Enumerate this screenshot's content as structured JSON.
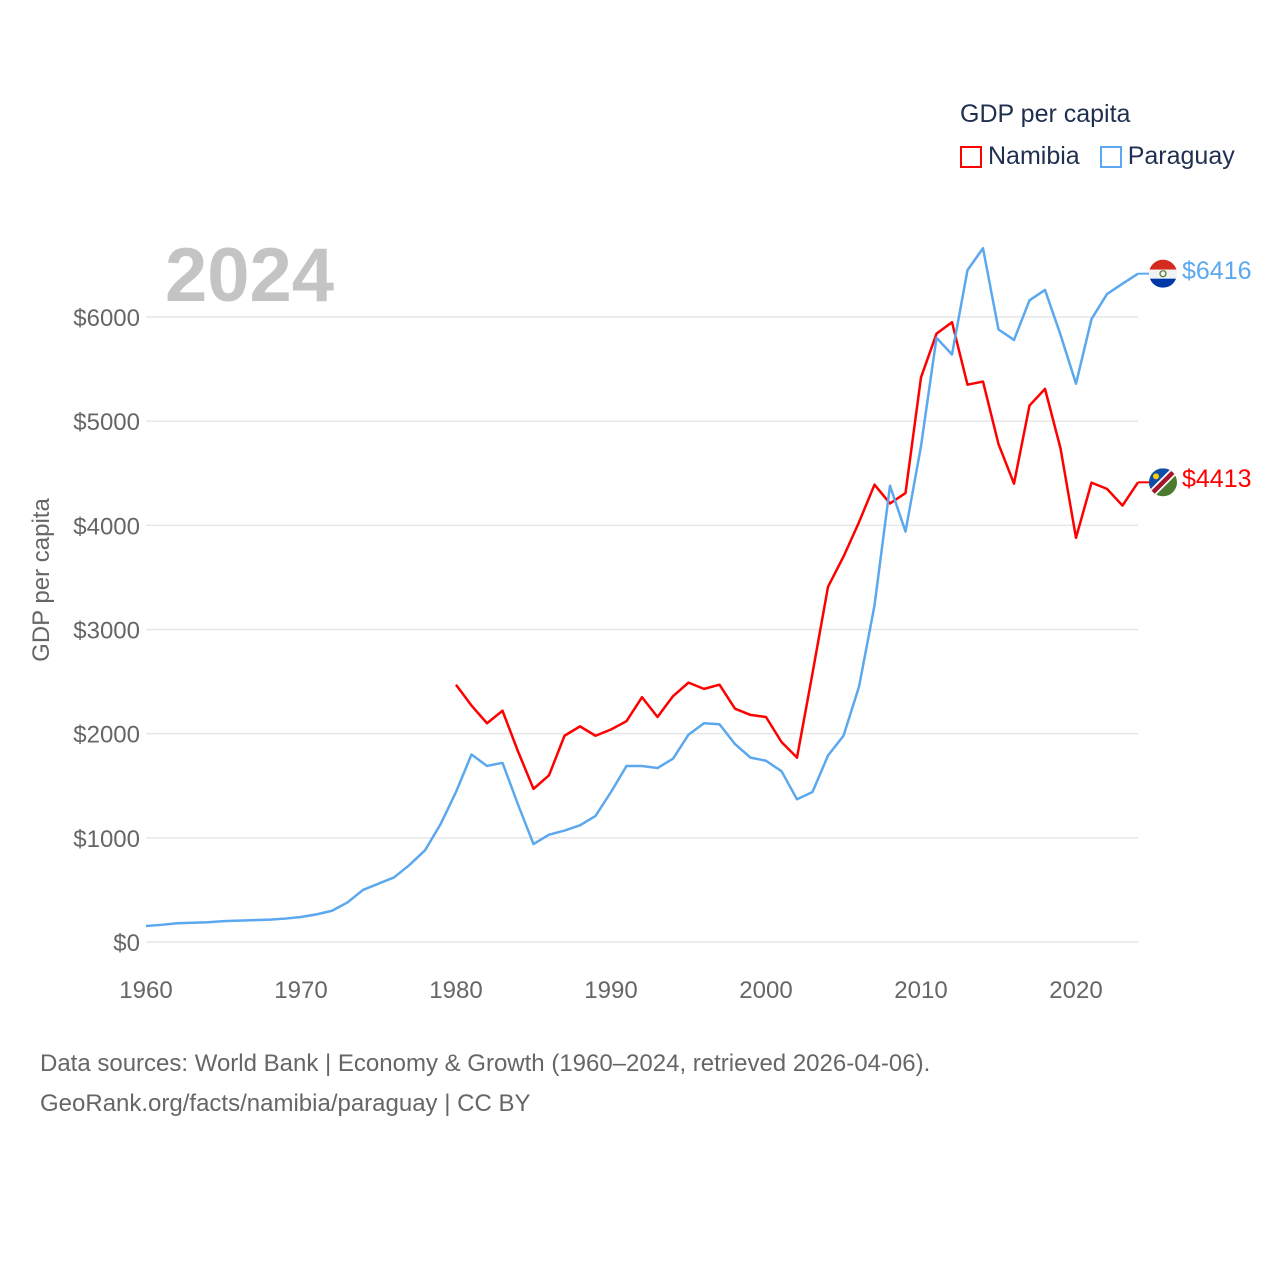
{
  "chart_data": {
    "type": "line",
    "title": "GDP per capita",
    "ylabel": "GDP per capita",
    "xlabel": "",
    "xlim": [
      1960,
      2024
    ],
    "ylim": [
      0,
      6000
    ],
    "x_ticks": [
      "1960",
      "1970",
      "1980",
      "1990",
      "2000",
      "2010",
      "2020"
    ],
    "y_ticks": [
      "$0",
      "$1000",
      "$2000",
      "$3000",
      "$4000",
      "$5000",
      "$6000"
    ],
    "grid": true,
    "legend_placement": "top-right",
    "current_year": "2024",
    "series": [
      {
        "name": "Namibia",
        "color": "#ff0000",
        "end_label": "$4413",
        "start_year": 1980,
        "values": [
          2470,
          2270,
          2100,
          2220,
          1830,
          1470,
          1600,
          1980,
          2070,
          1980,
          2040,
          2120,
          2350,
          2160,
          2360,
          2490,
          2430,
          2470,
          2240,
          2180,
          2160,
          1920,
          1770,
          2580,
          3410,
          3700,
          4030,
          4390,
          4210,
          4310,
          5420,
          5840,
          5950,
          5350,
          5380,
          4780,
          4400,
          5150,
          5310,
          4740,
          3880,
          4410,
          4350,
          4190,
          4413
        ]
      },
      {
        "name": "Paraguay",
        "color": "#5ba8ee",
        "end_label": "$6416",
        "start_year": 1960,
        "values": [
          154,
          165,
          180,
          185,
          190,
          200,
          205,
          210,
          215,
          225,
          240,
          265,
          300,
          380,
          500,
          560,
          620,
          740,
          880,
          1130,
          1440,
          1800,
          1690,
          1720,
          1320,
          940,
          1030,
          1070,
          1120,
          1210,
          1440,
          1690,
          1690,
          1670,
          1760,
          1990,
          2100,
          2090,
          1900,
          1770,
          1740,
          1640,
          1370,
          1440,
          1790,
          1980,
          2450,
          3230,
          4380,
          3940,
          4760,
          5800,
          5640,
          6450,
          6660,
          5880,
          5780,
          6160,
          6260,
          5830,
          5360,
          5980,
          6220,
          6320,
          6416
        ]
      }
    ]
  },
  "legend": {
    "title": "GDP per capita",
    "items": [
      "Namibia",
      "Paraguay"
    ]
  },
  "footer": {
    "line1": "Data sources: World Bank | Economy & Growth (1960–2024, retrieved 2026-04-06).",
    "line2": "GeoRank.org/facts/namibia/paraguay | CC BY"
  }
}
